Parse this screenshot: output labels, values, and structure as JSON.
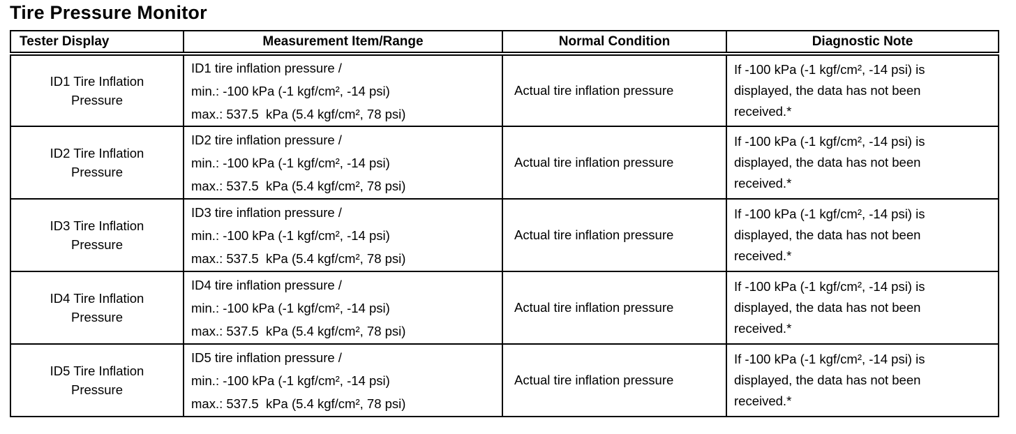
{
  "page": {
    "title": "Tire Pressure Monitor"
  },
  "table": {
    "headers": [
      "Tester Display",
      "Measurement Item/Range",
      "Normal Condition",
      "Diagnostic Note"
    ],
    "rows": [
      {
        "tester_display": "ID1 Tire Inflation\nPressure",
        "measurement": [
          "ID1 tire inflation pressure /",
          "min.: -100 kPa (-1 kgf/cm², -14 psi)",
          "max.: 537.5  kPa (5.4 kgf/cm², 78 psi)"
        ],
        "normal_condition": "Actual tire inflation pressure",
        "diagnostic_note": "If -100 kPa (-1 kgf/cm², -14 psi) is\ndisplayed, the data has not been\nreceived.*"
      },
      {
        "tester_display": "ID2 Tire Inflation\nPressure",
        "measurement": [
          "ID2 tire inflation pressure /",
          "min.: -100 kPa (-1 kgf/cm², -14 psi)",
          "max.: 537.5  kPa (5.4 kgf/cm², 78 psi)"
        ],
        "normal_condition": "Actual tire inflation pressure",
        "diagnostic_note": "If -100 kPa (-1 kgf/cm², -14 psi) is\ndisplayed, the data has not been\nreceived.*"
      },
      {
        "tester_display": "ID3 Tire Inflation\nPressure",
        "measurement": [
          "ID3 tire inflation pressure /",
          "min.: -100 kPa (-1 kgf/cm², -14 psi)",
          "max.: 537.5  kPa (5.4 kgf/cm², 78 psi)"
        ],
        "normal_condition": "Actual tire inflation pressure",
        "diagnostic_note": "If -100 kPa (-1 kgf/cm², -14 psi) is\ndisplayed, the data has not been\nreceived.*"
      },
      {
        "tester_display": "ID4 Tire Inflation\nPressure",
        "measurement": [
          "ID4 tire inflation pressure /",
          "min.: -100 kPa (-1 kgf/cm², -14 psi)",
          "max.: 537.5  kPa (5.4 kgf/cm², 78 psi)"
        ],
        "normal_condition": "Actual tire inflation pressure",
        "diagnostic_note": "If -100 kPa (-1 kgf/cm², -14 psi) is\ndisplayed, the data has not been\nreceived.*"
      },
      {
        "tester_display": "ID5 Tire Inflation\nPressure",
        "measurement": [
          "ID5 tire inflation pressure /",
          "min.: -100 kPa (-1 kgf/cm², -14 psi)",
          "max.: 537.5  kPa (5.4 kgf/cm², 78 psi)"
        ],
        "normal_condition": "Actual tire inflation pressure",
        "diagnostic_note": "If -100 kPa (-1 kgf/cm², -14 psi) is\ndisplayed, the data has not been\nreceived.*"
      }
    ],
    "colors": {
      "border": "#000000",
      "text": "#000000",
      "background": "#ffffff"
    }
  }
}
